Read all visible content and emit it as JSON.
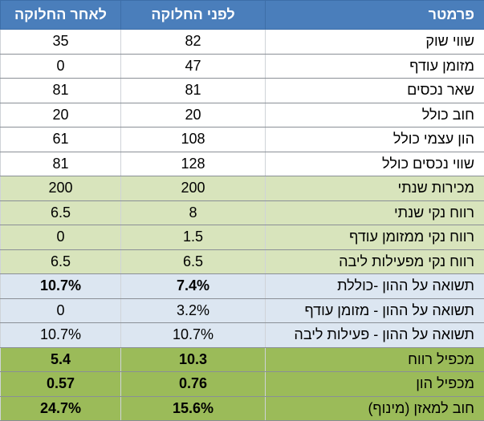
{
  "table": {
    "header": [
      "פרמטר",
      "לפני החלוקה",
      "לאחר החלוקה"
    ],
    "rows": [
      [
        "שווי שוק",
        "82",
        "35"
      ],
      [
        "מזומן עודף",
        "47",
        "0"
      ],
      [
        "שאר נכסים",
        "81",
        "81"
      ],
      [
        "חוב כולל",
        "20",
        "20"
      ],
      [
        "הון עצמי כולל",
        "108",
        "61"
      ],
      [
        "שווי נכסים כולל",
        "128",
        "81"
      ],
      [
        "מכירות שנתי",
        "200",
        "200"
      ],
      [
        "רווח נקי שנתי",
        "8",
        "6.5"
      ],
      [
        "רווח נקי ממזומן עודף",
        "1.5",
        "0"
      ],
      [
        "רווח נקי מפעילות ליבה",
        "6.5",
        "6.5"
      ],
      [
        "תשואה על ההון -כוללת",
        "7.4%",
        "10.7%"
      ],
      [
        "תשואה על ההון - מזומן עודף",
        "3.2%",
        "0"
      ],
      [
        "תשואה על ההון - פעילות ליבה",
        "10.7%",
        "10.7%"
      ],
      [
        "מכפיל רווח",
        "10.3",
        "5.4"
      ],
      [
        "מכפיל הון",
        "0.76",
        "0.57"
      ],
      [
        "חוב למאזן (מינוף)",
        "15.6%",
        "24.7%"
      ]
    ]
  }
}
